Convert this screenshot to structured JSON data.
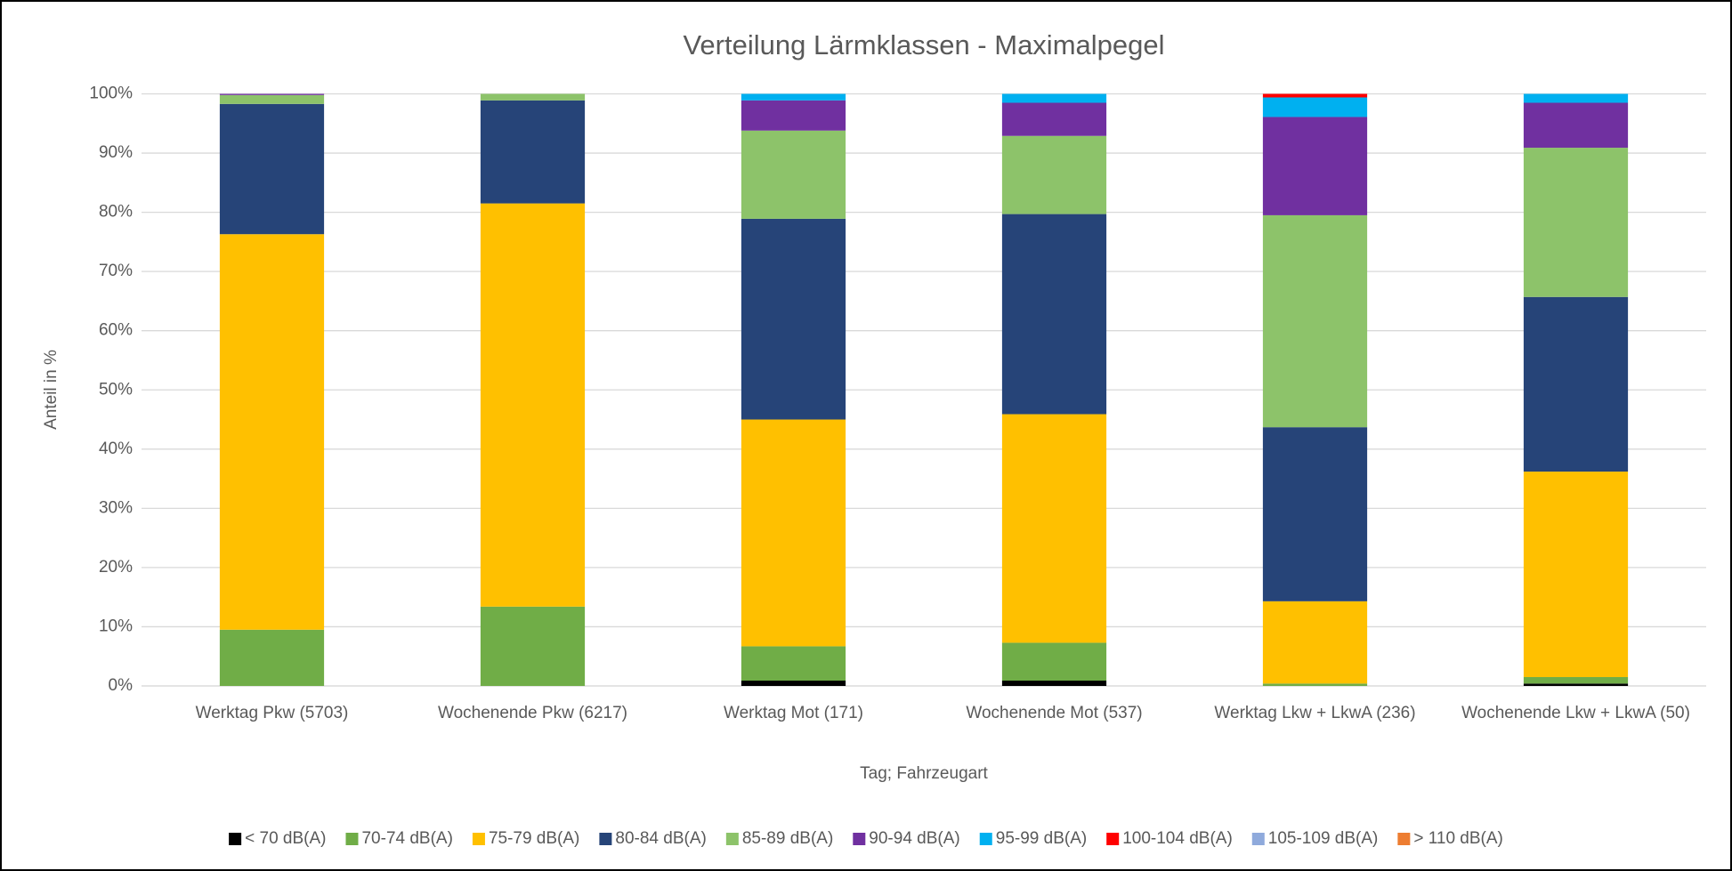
{
  "chart_data": {
    "type": "stacked_bar",
    "title": "Verteilung Lärmklassen - Maximalpegel",
    "x_label": "Tag; Fahrzeugart",
    "y_label": "Anteil in %",
    "categories": [
      "Werktag Pkw (5703)",
      "Wochenende Pkw (6217)",
      "Werktag Mot (171)",
      "Wochenende Mot (537)",
      "Werktag Lkw + LkwA (236)",
      "Wochenende Lkw + LkwA (50)"
    ],
    "series": [
      {
        "name": "< 70 dB(A)",
        "color": "#000000",
        "values": [
          0,
          0,
          0.9,
          0.9,
          0,
          0.4
        ]
      },
      {
        "name": "70-74 dB(A)",
        "color": "#70ad47",
        "values": [
          9.5,
          13.4,
          5.8,
          6.4,
          0.4,
          1.1
        ]
      },
      {
        "name": "75-79 dB(A)",
        "color": "#ffc000",
        "values": [
          66.8,
          68.1,
          38.3,
          38.6,
          13.9,
          34.7
        ]
      },
      {
        "name": "80-84 dB(A)",
        "color": "#264478",
        "values": [
          22.0,
          17.4,
          33.9,
          33.8,
          29.4,
          29.5
        ]
      },
      {
        "name": "85-89 dB(A)",
        "color": "#8dc36a",
        "values": [
          1.5,
          1.1,
          14.9,
          13.2,
          35.8,
          25.2
        ]
      },
      {
        "name": "90-94 dB(A)",
        "color": "#7030a0",
        "values": [
          0.2,
          0,
          5.1,
          5.6,
          16.6,
          7.6
        ]
      },
      {
        "name": "95-99 dB(A)",
        "color": "#00b0f0",
        "values": [
          0,
          0,
          1.1,
          1.5,
          3.3,
          1.5
        ]
      },
      {
        "name": "100-104 dB(A)",
        "color": "#ff0000",
        "values": [
          0,
          0,
          0,
          0,
          0.6,
          0
        ]
      },
      {
        "name": "105-109 dB(A)",
        "color": "#8faadc",
        "values": [
          0,
          0,
          0,
          0,
          0,
          0
        ]
      },
      {
        "name": "> 110 dB(A)",
        "color": "#ed7d31",
        "values": [
          0,
          0,
          0,
          0,
          0,
          0
        ]
      }
    ],
    "ylim": [
      0,
      100
    ],
    "yticks": [
      {
        "value": 0,
        "label": "0%"
      },
      {
        "value": 10,
        "label": "10%"
      },
      {
        "value": 20,
        "label": "20%"
      },
      {
        "value": 30,
        "label": "30%"
      },
      {
        "value": 40,
        "label": "40%"
      },
      {
        "value": 50,
        "label": "50%"
      },
      {
        "value": 60,
        "label": "60%"
      },
      {
        "value": 70,
        "label": "70%"
      },
      {
        "value": 80,
        "label": "80%"
      },
      {
        "value": 90,
        "label": "90%"
      },
      {
        "value": 100,
        "label": "100%"
      }
    ],
    "grid": true,
    "legend": "bottom"
  }
}
